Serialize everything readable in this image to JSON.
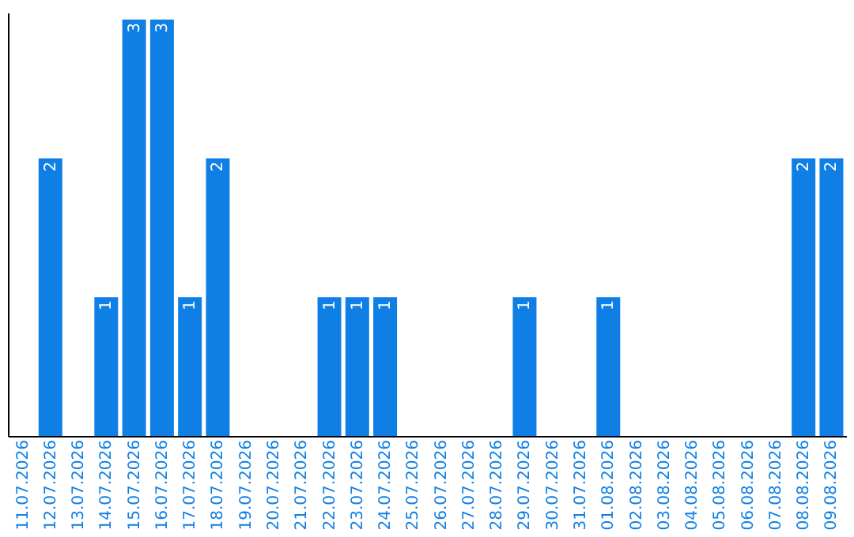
{
  "chart_data": {
    "type": "bar",
    "categories": [
      "11.07.2026",
      "12.07.2026",
      "13.07.2026",
      "14.07.2026",
      "15.07.2026",
      "16.07.2026",
      "17.07.2026",
      "18.07.2026",
      "19.07.2026",
      "20.07.2026",
      "21.07.2026",
      "22.07.2026",
      "23.07.2026",
      "24.07.2026",
      "25.07.2026",
      "26.07.2026",
      "27.07.2026",
      "28.07.2026",
      "29.07.2026",
      "30.07.2026",
      "31.07.2026",
      "01.08.2026",
      "02.08.2026",
      "03.08.2026",
      "04.08.2026",
      "05.08.2026",
      "06.08.2026",
      "07.08.2026",
      "08.08.2026",
      "09.08.2026"
    ],
    "values": [
      0,
      2,
      0,
      1,
      3,
      3,
      1,
      2,
      0,
      0,
      0,
      1,
      1,
      1,
      0,
      0,
      0,
      0,
      1,
      0,
      0,
      1,
      0,
      0,
      0,
      0,
      0,
      0,
      2,
      2
    ],
    "value_labels": [
      null,
      "2",
      null,
      "1",
      "3",
      "3",
      "1",
      "2",
      null,
      null,
      null,
      "1",
      "1",
      "1",
      null,
      null,
      null,
      null,
      "1",
      null,
      null,
      "1",
      null,
      null,
      null,
      null,
      null,
      null,
      "2",
      "2"
    ],
    "color": "#0f7fe6",
    "ylim": [
      0,
      3.05
    ],
    "tick_labels": "x",
    "grid": false
  }
}
